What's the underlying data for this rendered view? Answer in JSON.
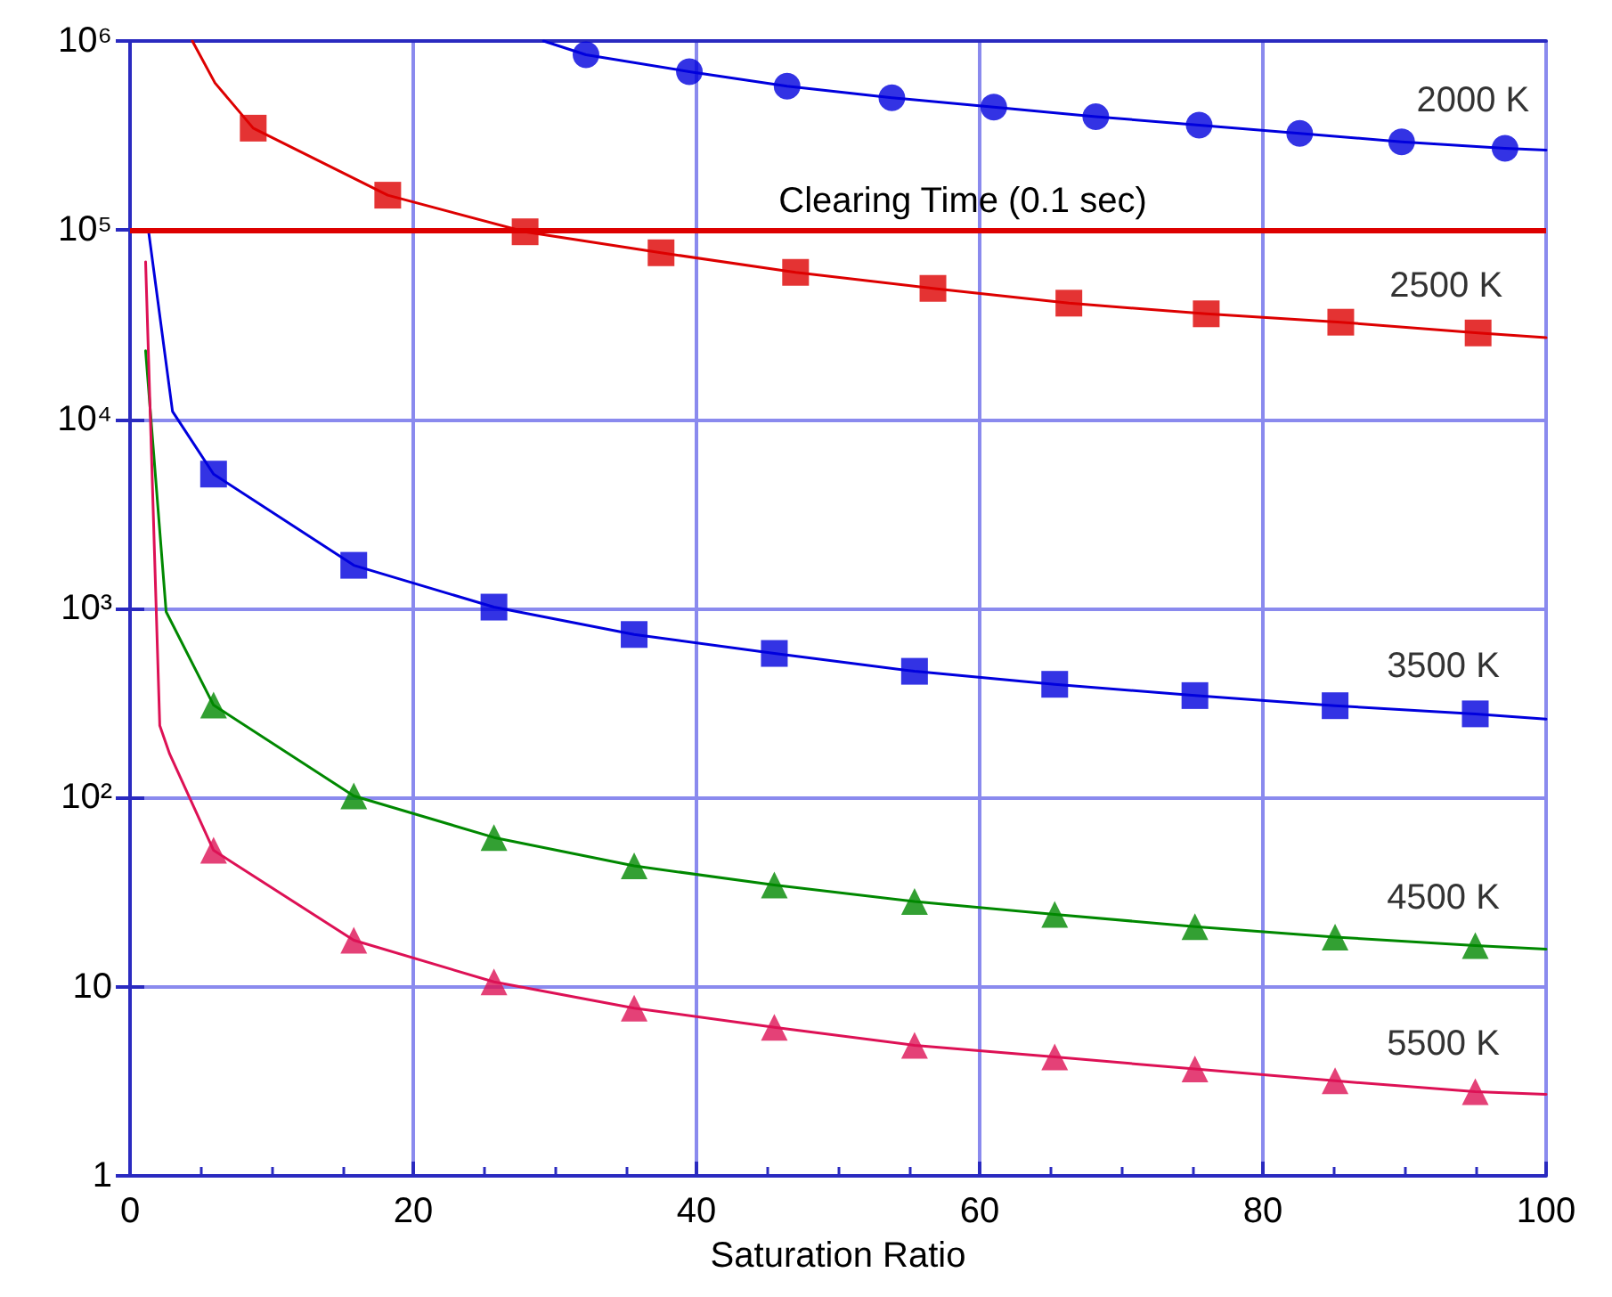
{
  "chart_data": {
    "type": "scatter",
    "xlabel": "Saturation Ratio",
    "xlim": [
      0,
      100
    ],
    "xticks": [
      0,
      20,
      40,
      60,
      80,
      100
    ],
    "ylim": [
      1,
      1000000
    ],
    "log": "y",
    "yticks": [
      {
        "value": 1,
        "label": "1"
      },
      {
        "value": 10,
        "label": "10"
      },
      {
        "value": 100,
        "label": "10²"
      },
      {
        "value": 1000,
        "label": "10³"
      },
      {
        "value": 10000,
        "label": "10⁴"
      },
      {
        "value": 100000,
        "label": "10⁵"
      },
      {
        "value": 1000000,
        "label": "10⁶"
      }
    ],
    "grid": true,
    "legend": false,
    "ref_lines": [
      {
        "axis": "y",
        "value": 100000,
        "label": "Clearing Time (0.1 sec)",
        "color": "#dd0000"
      }
    ],
    "series": [
      {
        "type": "line",
        "marker": "none",
        "color": "#0000dd",
        "x": [
          29.2,
          32.2,
          39.5,
          46.4,
          53.8,
          61,
          68.2,
          75.5,
          82.6,
          89.8,
          97.1,
          100
        ],
        "values": [
          1000000,
          845000,
          688000,
          577000,
          501000,
          447000,
          398000,
          359000,
          325000,
          293000,
          271000,
          265000
        ]
      },
      {
        "type": "line",
        "marker": "none",
        "color": "#dd0000",
        "x": [
          4.4,
          6,
          8.7,
          18.2,
          27.9,
          37.5,
          47.0,
          56.7,
          66.3,
          76.0,
          85.5,
          95.2,
          100
        ],
        "values": [
          1000000,
          600000,
          346000,
          153000,
          98000,
          75900,
          59800,
          49200,
          41100,
          36100,
          32600,
          28600,
          27000
        ]
      },
      {
        "type": "line",
        "marker": "none",
        "color": "#0000dd",
        "x": [
          1.3,
          3,
          5.9,
          15.8,
          25.7,
          35.6,
          45.5,
          55.4,
          65.3,
          75.2,
          85.1,
          95.0,
          100
        ],
        "values": [
          100000,
          11000,
          5130,
          1690,
          1016,
          728,
          578,
          465,
          397,
          346,
          306,
          277,
          260
        ]
      },
      {
        "type": "line",
        "marker": "none",
        "color": "#008800",
        "x": [
          1.1,
          2.55,
          5.9,
          15.8,
          25.7,
          35.6,
          45.5,
          55.4,
          65.3,
          75.2,
          85.1,
          95.0,
          100
        ],
        "values": [
          23000,
          960,
          308,
          102,
          61.5,
          43.5,
          34.5,
          28.2,
          24.1,
          20.8,
          18.3,
          16.5,
          15.8
        ]
      },
      {
        "type": "line",
        "marker": "none",
        "color": "#dd1155",
        "x": [
          1.1,
          2.1,
          2.8,
          5.9,
          15.8,
          25.7,
          35.6,
          45.5,
          55.4,
          65.3,
          75.2,
          85.1,
          95.0,
          100
        ],
        "values": [
          68000,
          240,
          170,
          52.6,
          17.6,
          10.6,
          7.7,
          6.1,
          4.9,
          4.25,
          3.67,
          3.18,
          2.79,
          2.7
        ]
      },
      {
        "name": "2000 K",
        "marker": "circle",
        "color": "#0000dd",
        "x": [
          32.2,
          39.5,
          46.4,
          53.8,
          61,
          68.2,
          75.5,
          82.6,
          89.8,
          97.1
        ],
        "values": [
          845000,
          688000,
          577000,
          501000,
          447000,
          398000,
          359000,
          325000,
          293000,
          271000
        ]
      },
      {
        "name": "2500 K",
        "marker": "square",
        "color": "#dd0000",
        "x": [
          8.7,
          18.2,
          27.9,
          37.5,
          47.0,
          56.7,
          66.3,
          76.0,
          85.5,
          95.2
        ],
        "values": [
          346000,
          153000,
          98000,
          75900,
          59800,
          49200,
          41100,
          36100,
          32600,
          28600
        ]
      },
      {
        "name": "3500 K",
        "marker": "square",
        "color": "#0000dd",
        "x": [
          5.9,
          15.8,
          25.7,
          35.6,
          45.5,
          55.4,
          65.3,
          75.2,
          85.1,
          95.0
        ],
        "values": [
          5130,
          1690,
          1016,
          728,
          578,
          465,
          397,
          346,
          306,
          277
        ]
      },
      {
        "name": "4500 K",
        "marker": "triangle",
        "color": "#008800",
        "x": [
          5.9,
          15.8,
          25.7,
          35.6,
          45.5,
          55.4,
          65.3,
          75.2,
          85.1,
          95.0
        ],
        "values": [
          308,
          102,
          61.5,
          43.5,
          34.5,
          28.2,
          24.1,
          20.8,
          18.3,
          16.5
        ]
      },
      {
        "name": "5500 K",
        "marker": "triangle",
        "color": "#dd1155",
        "x": [
          5.9,
          15.8,
          25.7,
          35.6,
          45.5,
          55.4,
          65.3,
          75.2,
          85.1,
          95.0
        ],
        "values": [
          52.6,
          17.6,
          10.6,
          7.7,
          6.1,
          4.9,
          4.25,
          3.67,
          3.18,
          2.79
        ]
      }
    ]
  }
}
